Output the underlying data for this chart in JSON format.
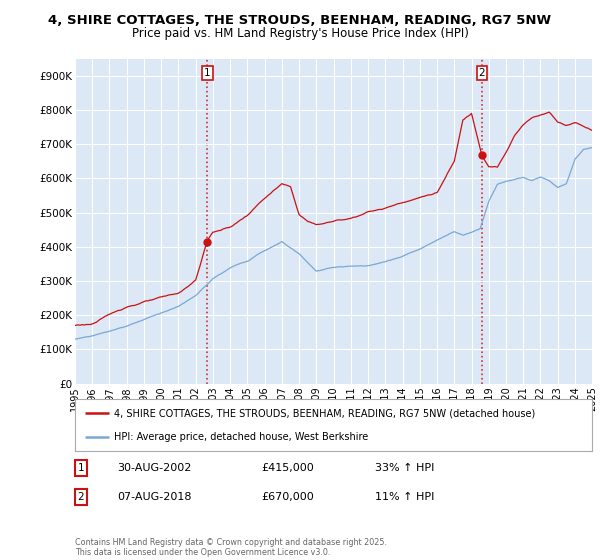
{
  "title": "4, SHIRE COTTAGES, THE STROUDS, BEENHAM, READING, RG7 5NW",
  "subtitle": "Price paid vs. HM Land Registry's House Price Index (HPI)",
  "ylim": [
    0,
    950000
  ],
  "yticks": [
    0,
    100000,
    200000,
    300000,
    400000,
    500000,
    600000,
    700000,
    800000,
    900000
  ],
  "ytick_labels": [
    "£0",
    "£100K",
    "£200K",
    "£300K",
    "£400K",
    "£500K",
    "£600K",
    "£700K",
    "£800K",
    "£900K"
  ],
  "background_color": "#ffffff",
  "plot_bg_color": "#dce8f5",
  "grid_color": "#ffffff",
  "sale1": {
    "date_label": "30-AUG-2002",
    "price": 415000,
    "hpi_pct": "33%",
    "x": 2002.67
  },
  "sale2": {
    "date_label": "07-AUG-2018",
    "price": 670000,
    "hpi_pct": "11%",
    "x": 2018.61
  },
  "legend_property": "4, SHIRE COTTAGES, THE STROUDS, BEENHAM, READING, RG7 5NW (detached house)",
  "legend_hpi": "HPI: Average price, detached house, West Berkshire",
  "property_color": "#cc1111",
  "hpi_color": "#7aa8d4",
  "footnote": "Contains HM Land Registry data © Crown copyright and database right 2025.\nThis data is licensed under the Open Government Licence v3.0.",
  "xmin": 1995,
  "xmax": 2025,
  "prop_keypoints_x": [
    1995,
    1996,
    1997,
    1998,
    1999,
    2000,
    2001,
    2002,
    2002.67,
    2003,
    2004,
    2005,
    2006,
    2007,
    2007.5,
    2008,
    2008.5,
    2009,
    2010,
    2011,
    2012,
    2013,
    2014,
    2015,
    2016,
    2017,
    2017.5,
    2018,
    2018.61,
    2019,
    2019.5,
    2020,
    2020.5,
    2021,
    2021.5,
    2022,
    2022.5,
    2023,
    2023.5,
    2024,
    2024.5,
    2025
  ],
  "prop_keypoints_y": [
    170000,
    175000,
    200000,
    225000,
    240000,
    250000,
    260000,
    300000,
    415000,
    440000,
    455000,
    490000,
    540000,
    580000,
    570000,
    490000,
    470000,
    460000,
    470000,
    480000,
    500000,
    510000,
    530000,
    545000,
    560000,
    650000,
    770000,
    790000,
    670000,
    640000,
    640000,
    680000,
    730000,
    760000,
    780000,
    790000,
    800000,
    770000,
    760000,
    770000,
    760000,
    750000
  ],
  "hpi_keypoints_x": [
    1995,
    1996,
    1997,
    1998,
    1999,
    2000,
    2001,
    2002,
    2003,
    2004,
    2005,
    2006,
    2007,
    2008,
    2009,
    2010,
    2011,
    2012,
    2013,
    2014,
    2015,
    2016,
    2017,
    2017.5,
    2018,
    2018.5,
    2019,
    2019.5,
    2020,
    2020.5,
    2021,
    2021.5,
    2022,
    2022.5,
    2023,
    2023.5,
    2024,
    2024.5,
    2025
  ],
  "hpi_keypoints_y": [
    130000,
    140000,
    155000,
    170000,
    190000,
    210000,
    230000,
    260000,
    310000,
    340000,
    360000,
    390000,
    415000,
    380000,
    330000,
    340000,
    345000,
    345000,
    355000,
    370000,
    390000,
    415000,
    440000,
    430000,
    440000,
    450000,
    530000,
    580000,
    590000,
    595000,
    600000,
    590000,
    600000,
    590000,
    570000,
    580000,
    650000,
    680000,
    685000
  ]
}
